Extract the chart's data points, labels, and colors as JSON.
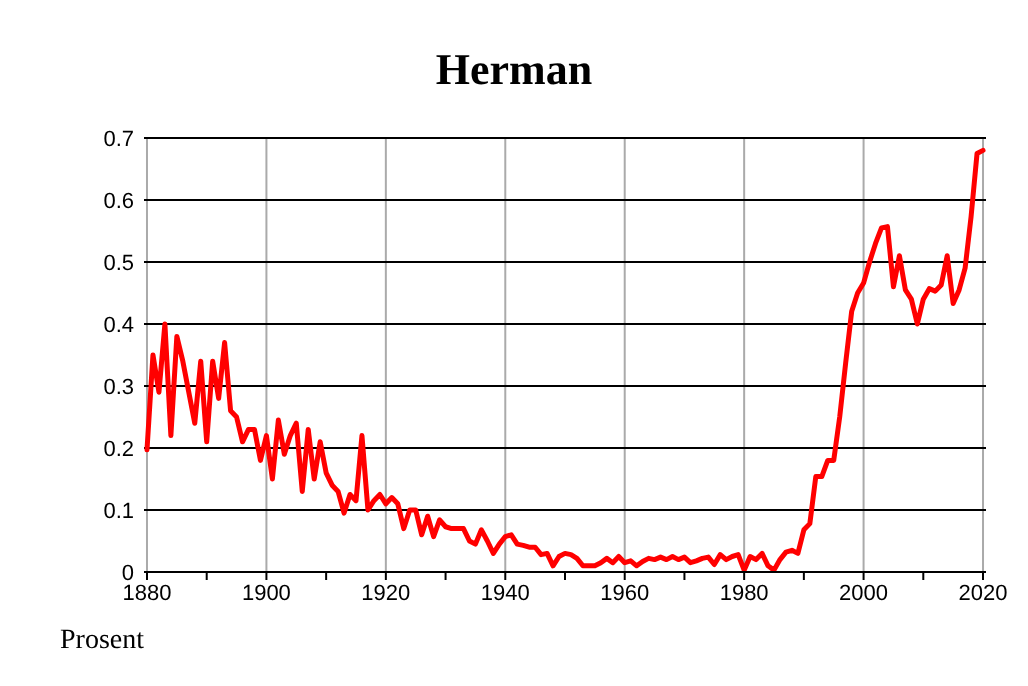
{
  "chart_data": {
    "type": "line",
    "title": "Herman",
    "ylabel": "Prosent",
    "x": [
      1880,
      1881,
      1882,
      1883,
      1884,
      1885,
      1886,
      1887,
      1888,
      1889,
      1890,
      1891,
      1892,
      1893,
      1894,
      1895,
      1896,
      1897,
      1898,
      1899,
      1900,
      1901,
      1902,
      1903,
      1904,
      1905,
      1906,
      1907,
      1908,
      1909,
      1910,
      1911,
      1912,
      1913,
      1914,
      1915,
      1916,
      1917,
      1918,
      1919,
      1920,
      1921,
      1922,
      1923,
      1924,
      1925,
      1926,
      1927,
      1928,
      1929,
      1930,
      1931,
      1932,
      1933,
      1934,
      1935,
      1936,
      1937,
      1938,
      1939,
      1940,
      1941,
      1942,
      1943,
      1944,
      1945,
      1946,
      1947,
      1948,
      1949,
      1950,
      1951,
      1952,
      1953,
      1954,
      1955,
      1956,
      1957,
      1958,
      1959,
      1960,
      1961,
      1962,
      1963,
      1964,
      1965,
      1966,
      1967,
      1968,
      1969,
      1970,
      1971,
      1972,
      1973,
      1974,
      1975,
      1976,
      1977,
      1978,
      1979,
      1980,
      1981,
      1982,
      1983,
      1984,
      1985,
      1986,
      1987,
      1988,
      1989,
      1990,
      1991,
      1992,
      1993,
      1994,
      1995,
      1996,
      1997,
      1998,
      1999,
      2000,
      2001,
      2002,
      2003,
      2004,
      2005,
      2006,
      2007,
      2008,
      2009,
      2010,
      2011,
      2012,
      2013,
      2014,
      2015,
      2016,
      2017,
      2018,
      2019,
      2020
    ],
    "series": [
      {
        "color": "#ff0000",
        "values": [
          0.197,
          0.35,
          0.29,
          0.4,
          0.22,
          0.38,
          0.34,
          0.29,
          0.24,
          0.34,
          0.21,
          0.34,
          0.28,
          0.37,
          0.26,
          0.25,
          0.21,
          0.23,
          0.23,
          0.18,
          0.22,
          0.15,
          0.245,
          0.19,
          0.22,
          0.24,
          0.13,
          0.23,
          0.15,
          0.21,
          0.16,
          0.14,
          0.13,
          0.095,
          0.125,
          0.115,
          0.22,
          0.1,
          0.115,
          0.125,
          0.11,
          0.12,
          0.11,
          0.07,
          0.1,
          0.1,
          0.06,
          0.09,
          0.057,
          0.084,
          0.073,
          0.07,
          0.07,
          0.07,
          0.05,
          0.045,
          0.068,
          0.05,
          0.03,
          0.045,
          0.057,
          0.06,
          0.045,
          0.043,
          0.04,
          0.04,
          0.028,
          0.03,
          0.01,
          0.025,
          0.03,
          0.028,
          0.022,
          0.01,
          0.01,
          0.01,
          0.015,
          0.022,
          0.015,
          0.025,
          0.015,
          0.018,
          0.01,
          0.017,
          0.022,
          0.02,
          0.024,
          0.02,
          0.025,
          0.02,
          0.024,
          0.015,
          0.018,
          0.022,
          0.024,
          0.012,
          0.028,
          0.02,
          0.025,
          0.028,
          0.003,
          0.025,
          0.02,
          0.03,
          0.01,
          0.003,
          0.02,
          0.032,
          0.035,
          0.03,
          0.068,
          0.078,
          0.154,
          0.154,
          0.18,
          0.18,
          0.25,
          0.337,
          0.42,
          0.45,
          0.466,
          0.5,
          0.53,
          0.555,
          0.557,
          0.46,
          0.51,
          0.455,
          0.44,
          0.4,
          0.44,
          0.457,
          0.453,
          0.463,
          0.51,
          0.433,
          0.455,
          0.49,
          0.573,
          0.675,
          0.68
        ]
      }
    ],
    "xlim": [
      1879.5,
      2020.5
    ],
    "xticks": [
      1880,
      {
        "value": 1890,
        "label": null
      },
      1900,
      {
        "value": 1910,
        "label": null
      },
      1920,
      {
        "value": 1930,
        "label": null
      },
      1940,
      {
        "value": 1950,
        "label": null
      },
      1960,
      {
        "value": 1970,
        "label": null
      },
      1980,
      {
        "value": 1990,
        "label": null
      },
      2000,
      {
        "value": 2010,
        "label": null
      },
      2020
    ],
    "ylim": [
      0,
      0.7
    ],
    "yticks": [
      0,
      0.1,
      0.2,
      0.3,
      0.4,
      0.5,
      0.6,
      0.7
    ],
    "grid": true,
    "marker": "none",
    "line_style": "solid"
  }
}
